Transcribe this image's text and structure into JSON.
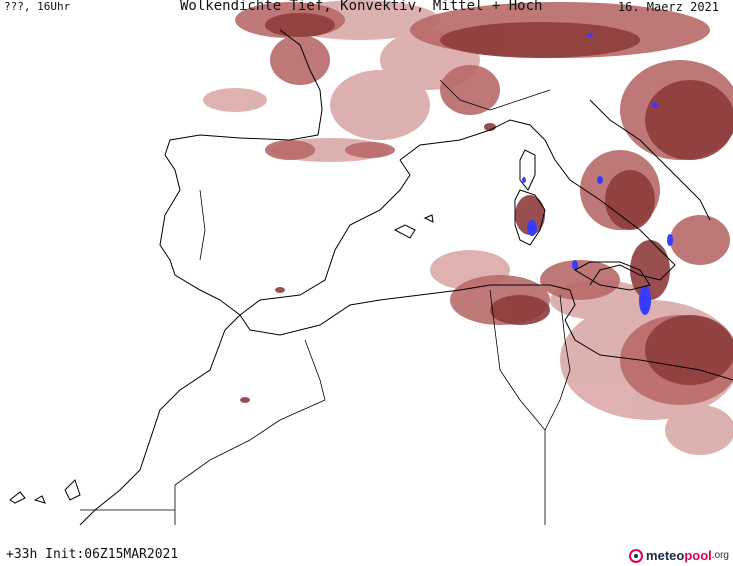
{
  "header": {
    "left": "???, 16Uhr",
    "title": "Wolkendichte  Tief, Konvektiv, Mittel + Hoch",
    "date": "16. Maerz 2021"
  },
  "footer": {
    "forecast": "+33h Init:06Z15MAR2021"
  },
  "brand": {
    "name_a": "meteo",
    "name_b": "pool",
    "suffix": ".org"
  },
  "colors": {
    "cloud_dark": "#8e3c3c",
    "cloud_mid": "#b86a6a",
    "cloud_light": "#d9a3a3",
    "convective": "#3b3bff",
    "coast": "#000000"
  }
}
